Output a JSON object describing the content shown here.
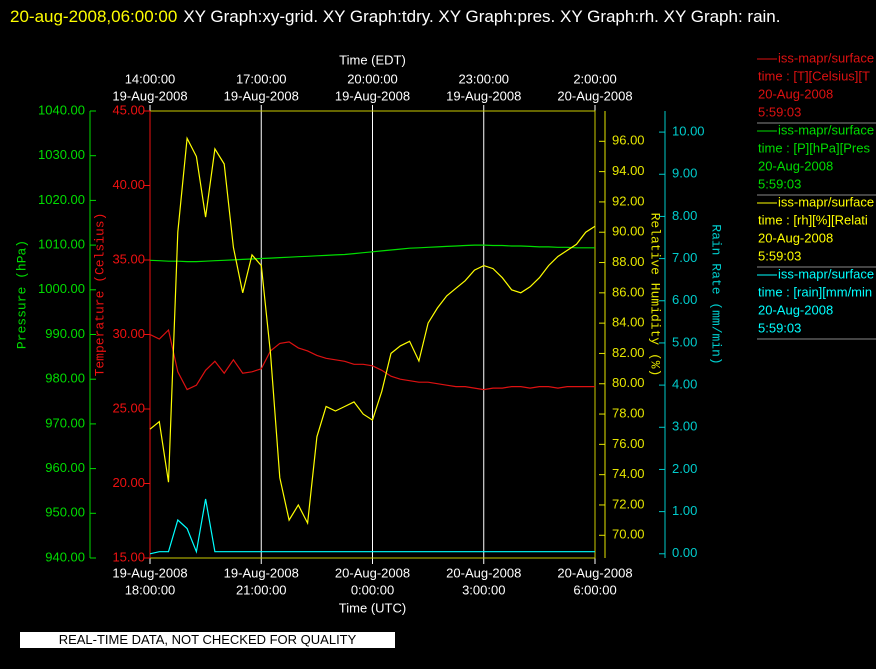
{
  "header": {
    "timestamp": "20-aug-2008,06:00:00",
    "title": "XY Graph:xy-grid.  XY Graph:tdry.  XY Graph:pres.  XY Graph:rh.  XY Graph: rain."
  },
  "chart_data": {
    "type": "line",
    "xlabel": "Time (UTC)",
    "x2label": "Time (EDT)",
    "grid": true,
    "xlim": [
      "2008-08-19T18:00:00",
      "2008-08-20T06:00:00"
    ],
    "xticks": [
      {
        "value": "2008-08-19T18:00:00",
        "label": [
          "19-Aug-2008",
          "18:00:00"
        ]
      },
      {
        "value": "2008-08-19T21:00:00",
        "label": [
          "19-Aug-2008",
          "21:00:00"
        ]
      },
      {
        "value": "2008-08-20T00:00:00",
        "label": [
          "20-Aug-2008",
          "0:00:00"
        ]
      },
      {
        "value": "2008-08-20T03:00:00",
        "label": [
          "20-Aug-2008",
          "3:00:00"
        ]
      },
      {
        "value": "2008-08-20T06:00:00",
        "label": [
          "20-Aug-2008",
          "6:00:00"
        ]
      }
    ],
    "x2ticks": [
      {
        "value": "2008-08-19T18:00:00",
        "label": [
          "14:00:00",
          "19-Aug-2008"
        ]
      },
      {
        "value": "2008-08-19T21:00:00",
        "label": [
          "17:00:00",
          "19-Aug-2008"
        ]
      },
      {
        "value": "2008-08-20T00:00:00",
        "label": [
          "20:00:00",
          "19-Aug-2008"
        ]
      },
      {
        "value": "2008-08-20T03:00:00",
        "label": [
          "23:00:00",
          "19-Aug-2008"
        ]
      },
      {
        "value": "2008-08-20T06:00:00",
        "label": [
          "2:00:00",
          "20-Aug-2008"
        ]
      }
    ],
    "axes": [
      {
        "label": "Pressure (hPa)",
        "color": "#00dd00",
        "lim": [
          940,
          1040
        ],
        "ticks": [
          {
            "value": 940,
            "label": "940.00"
          },
          {
            "value": 950,
            "label": "950.00"
          },
          {
            "value": 960,
            "label": "960.00"
          },
          {
            "value": 970,
            "label": "970.00"
          },
          {
            "value": 980,
            "label": "980.00"
          },
          {
            "value": 990,
            "label": "990.00"
          },
          {
            "value": 1000,
            "label": "1000.00"
          },
          {
            "value": 1010,
            "label": "1010.00"
          },
          {
            "value": 1020,
            "label": "1020.00"
          },
          {
            "value": 1030,
            "label": "1030.00"
          },
          {
            "value": 1040,
            "label": "1040.00"
          }
        ]
      },
      {
        "label": "Temperature (Celsius)",
        "color": "#ee1111",
        "lim": [
          15,
          45
        ],
        "ticks": [
          {
            "value": 15,
            "label": "15.00"
          },
          {
            "value": 20,
            "label": "20.00"
          },
          {
            "value": 25,
            "label": "25.00"
          },
          {
            "value": 30,
            "label": "30.00"
          },
          {
            "value": 35,
            "label": "35.00"
          },
          {
            "value": 40,
            "label": "40.00"
          },
          {
            "value": 45,
            "label": "45.00"
          }
        ]
      },
      {
        "label": "Relative Humidity (%)",
        "color": "#e6e600",
        "lim": [
          68.5,
          98
        ],
        "ticks": [
          {
            "value": 70,
            "label": "70.00"
          },
          {
            "value": 72,
            "label": "72.00"
          },
          {
            "value": 74,
            "label": "74.00"
          },
          {
            "value": 76,
            "label": "76.00"
          },
          {
            "value": 78,
            "label": "78.00"
          },
          {
            "value": 80,
            "label": "80.00"
          },
          {
            "value": 82,
            "label": "82.00"
          },
          {
            "value": 84,
            "label": "84.00"
          },
          {
            "value": 86,
            "label": "86.00"
          },
          {
            "value": 88,
            "label": "88.00"
          },
          {
            "value": 90,
            "label": "90.00"
          },
          {
            "value": 92,
            "label": "92.00"
          },
          {
            "value": 94,
            "label": "94.00"
          },
          {
            "value": 96,
            "label": "96.00"
          }
        ]
      },
      {
        "label": "Rain Rate (mm/min)",
        "color": "#00cccc",
        "lim": [
          -0.1,
          10.5
        ],
        "ticks": [
          {
            "value": 0,
            "label": "0.00"
          },
          {
            "value": 1,
            "label": "1.00"
          },
          {
            "value": 2,
            "label": "2.00"
          },
          {
            "value": 3,
            "label": "3.00"
          },
          {
            "value": 4,
            "label": "4.00"
          },
          {
            "value": 5,
            "label": "5.00"
          },
          {
            "value": 6,
            "label": "6.00"
          },
          {
            "value": 7,
            "label": "7.00"
          },
          {
            "value": 8,
            "label": "8.00"
          },
          {
            "value": 9,
            "label": "9.00"
          },
          {
            "value": 10,
            "label": "10.00"
          }
        ]
      }
    ],
    "x": [
      "2008-08-19T18:00:00",
      "2008-08-19T18:15:00",
      "2008-08-19T18:30:00",
      "2008-08-19T18:45:00",
      "2008-08-19T19:00:00",
      "2008-08-19T19:15:00",
      "2008-08-19T19:30:00",
      "2008-08-19T19:45:00",
      "2008-08-19T20:00:00",
      "2008-08-19T20:15:00",
      "2008-08-19T20:30:00",
      "2008-08-19T20:45:00",
      "2008-08-19T21:00:00",
      "2008-08-19T21:15:00",
      "2008-08-19T21:30:00",
      "2008-08-19T21:45:00",
      "2008-08-19T22:00:00",
      "2008-08-19T22:15:00",
      "2008-08-19T22:30:00",
      "2008-08-19T22:45:00",
      "2008-08-19T23:00:00",
      "2008-08-19T23:15:00",
      "2008-08-19T23:30:00",
      "2008-08-19T23:45:00",
      "2008-08-20T00:00:00",
      "2008-08-20T00:15:00",
      "2008-08-20T00:30:00",
      "2008-08-20T00:45:00",
      "2008-08-20T01:00:00",
      "2008-08-20T01:15:00",
      "2008-08-20T01:30:00",
      "2008-08-20T01:45:00",
      "2008-08-20T02:00:00",
      "2008-08-20T02:15:00",
      "2008-08-20T02:30:00",
      "2008-08-20T02:45:00",
      "2008-08-20T03:00:00",
      "2008-08-20T03:15:00",
      "2008-08-20T03:30:00",
      "2008-08-20T03:45:00",
      "2008-08-20T04:00:00",
      "2008-08-20T04:15:00",
      "2008-08-20T04:30:00",
      "2008-08-20T04:45:00",
      "2008-08-20T05:00:00",
      "2008-08-20T05:15:00",
      "2008-08-20T05:30:00",
      "2008-08-20T05:45:00",
      "2008-08-20T06:00:00"
    ],
    "series": [
      {
        "name": "iss-mapr/surface",
        "label": "time : [T][Celsius][T",
        "date": "20-Aug-2008",
        "time": "5:59:03",
        "color": "#dd1111",
        "axis": 1,
        "values": [
          30.0,
          29.7,
          30.3,
          27.5,
          26.3,
          26.6,
          27.6,
          28.2,
          27.4,
          28.3,
          27.4,
          27.5,
          27.7,
          28.9,
          29.4,
          29.5,
          29.1,
          28.9,
          28.6,
          28.4,
          28.3,
          28.2,
          28.0,
          28.0,
          27.9,
          27.6,
          27.2,
          27.0,
          26.9,
          26.8,
          26.8,
          26.7,
          26.6,
          26.5,
          26.5,
          26.4,
          26.3,
          26.4,
          26.4,
          26.5,
          26.5,
          26.4,
          26.5,
          26.5,
          26.4,
          26.5,
          26.5,
          26.5,
          26.5
        ]
      },
      {
        "name": "iss-mapr/surface",
        "label": "time : [P][hPa][Pres",
        "date": "20-Aug-2008",
        "time": "5:59:03",
        "color": "#00dd00",
        "axis": 0,
        "values": [
          1006.6,
          1006.5,
          1006.4,
          1006.4,
          1006.3,
          1006.3,
          1006.4,
          1006.5,
          1006.6,
          1006.7,
          1006.8,
          1006.9,
          1007.0,
          1007.1,
          1007.2,
          1007.3,
          1007.4,
          1007.5,
          1007.6,
          1007.7,
          1007.8,
          1007.9,
          1008.1,
          1008.3,
          1008.5,
          1008.7,
          1008.9,
          1009.1,
          1009.3,
          1009.4,
          1009.5,
          1009.6,
          1009.7,
          1009.8,
          1009.9,
          1010.0,
          1010.0,
          1009.9,
          1009.9,
          1009.8,
          1009.8,
          1009.7,
          1009.6,
          1009.6,
          1009.5,
          1009.5,
          1009.4,
          1009.4,
          1009.4
        ]
      },
      {
        "name": "iss-mapr/surface",
        "label": "time : [rh][%][Relati",
        "date": "20-Aug-2008",
        "time": "5:59:03",
        "color": "#ffff00",
        "axis": 2,
        "values": [
          77.0,
          77.5,
          73.5,
          90.0,
          96.2,
          95.0,
          91.0,
          95.5,
          94.5,
          89.0,
          86.0,
          88.5,
          87.8,
          82.0,
          73.8,
          71.0,
          72.0,
          70.8,
          76.5,
          78.5,
          78.2,
          78.5,
          78.8,
          78.0,
          77.6,
          79.5,
          82.0,
          82.5,
          82.8,
          81.5,
          84.0,
          85.0,
          85.8,
          86.3,
          86.8,
          87.5,
          87.8,
          87.6,
          87.0,
          86.2,
          86.0,
          86.4,
          87.0,
          87.8,
          88.4,
          88.8,
          89.2,
          90.0,
          90.4
        ]
      },
      {
        "name": "iss-mapr/surface",
        "label": "time : [rain][mm/min",
        "date": "20-Aug-2008",
        "time": "5:59:03",
        "color": "#00ffff",
        "axis": 3,
        "values": [
          0.0,
          0.05,
          0.05,
          0.8,
          0.6,
          0.05,
          1.3,
          0.05,
          0.05,
          0.05,
          0.05,
          0.05,
          0.05,
          0.05,
          0.05,
          0.05,
          0.05,
          0.05,
          0.05,
          0.05,
          0.05,
          0.05,
          0.05,
          0.05,
          0.05,
          0.05,
          0.05,
          0.05,
          0.05,
          0.05,
          0.05,
          0.05,
          0.05,
          0.05,
          0.05,
          0.05,
          0.05,
          0.05,
          0.05,
          0.05,
          0.05,
          0.05,
          0.05,
          0.05,
          0.05,
          0.05,
          0.05,
          0.05,
          0.05
        ]
      }
    ]
  },
  "footer": {
    "note": "REAL-TIME DATA, NOT CHECKED FOR QUALITY"
  }
}
